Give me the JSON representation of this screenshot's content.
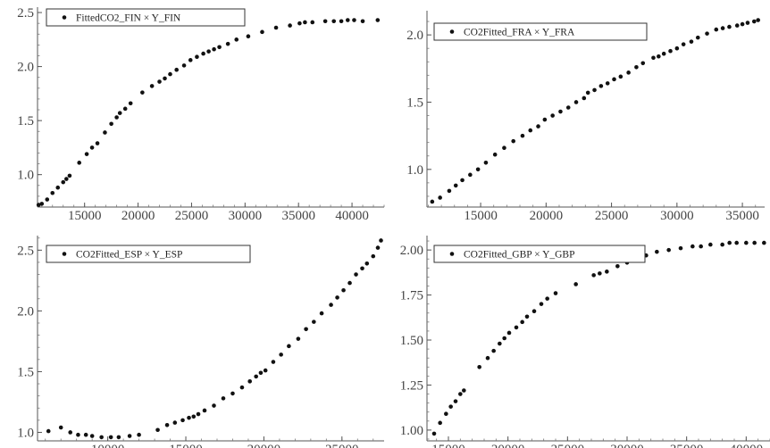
{
  "chart_data": [
    {
      "type": "scatter",
      "legend_label": "FittedCO2_FIN × Y_FIN",
      "legend_position": "top-left",
      "xlim": [
        10600,
        43000
      ],
      "ylim": [
        0.7,
        2.55
      ],
      "x_ticks": [
        15000,
        20000,
        25000,
        30000,
        35000,
        40000
      ],
      "x_tick_labels": [
        "15000",
        "20000",
        "25000",
        "30000",
        "35000",
        "40000"
      ],
      "y_ticks": [
        1.0,
        1.5,
        2.0,
        2.5
      ],
      "y_tick_labels": [
        "1.0",
        "1.5",
        "2.0",
        "2.5"
      ],
      "points": [
        [
          10700,
          0.72
        ],
        [
          11000,
          0.73
        ],
        [
          11500,
          0.77
        ],
        [
          12000,
          0.83
        ],
        [
          12500,
          0.88
        ],
        [
          13000,
          0.93
        ],
        [
          13300,
          0.96
        ],
        [
          13600,
          0.99
        ],
        [
          14500,
          1.11
        ],
        [
          15200,
          1.19
        ],
        [
          15700,
          1.25
        ],
        [
          16200,
          1.29
        ],
        [
          16900,
          1.39
        ],
        [
          17500,
          1.47
        ],
        [
          18000,
          1.53
        ],
        [
          18300,
          1.57
        ],
        [
          18800,
          1.61
        ],
        [
          19300,
          1.66
        ],
        [
          20400,
          1.76
        ],
        [
          21300,
          1.82
        ],
        [
          22000,
          1.86
        ],
        [
          22500,
          1.89
        ],
        [
          23000,
          1.93
        ],
        [
          23600,
          1.97
        ],
        [
          24300,
          2.01
        ],
        [
          24900,
          2.06
        ],
        [
          25500,
          2.09
        ],
        [
          26100,
          2.12
        ],
        [
          26600,
          2.14
        ],
        [
          27100,
          2.16
        ],
        [
          27600,
          2.18
        ],
        [
          28400,
          2.21
        ],
        [
          29200,
          2.25
        ],
        [
          30300,
          2.28
        ],
        [
          31600,
          2.32
        ],
        [
          32900,
          2.36
        ],
        [
          34200,
          2.38
        ],
        [
          35100,
          2.4
        ],
        [
          35600,
          2.41
        ],
        [
          36300,
          2.41
        ],
        [
          37500,
          2.42
        ],
        [
          38300,
          2.42
        ],
        [
          39000,
          2.42
        ],
        [
          39600,
          2.43
        ],
        [
          40200,
          2.43
        ],
        [
          41000,
          2.42
        ],
        [
          42400,
          2.43
        ]
      ]
    },
    {
      "type": "scatter",
      "legend_label": "CO2Fitted_FRA × Y_FRA",
      "legend_position": "top-left",
      "xlim": [
        10900,
        36700
      ],
      "ylim": [
        0.72,
        2.18
      ],
      "x_ticks": [
        15000,
        20000,
        25000,
        30000,
        35000
      ],
      "x_tick_labels": [
        "15000",
        "20000",
        "25000",
        "30000",
        "35000"
      ],
      "y_ticks": [
        1.0,
        1.5,
        2.0
      ],
      "y_tick_labels": [
        "1.0",
        "1.5",
        "2.0"
      ],
      "points": [
        [
          11300,
          0.76
        ],
        [
          11900,
          0.79
        ],
        [
          12600,
          0.84
        ],
        [
          13100,
          0.88
        ],
        [
          13600,
          0.92
        ],
        [
          14200,
          0.96
        ],
        [
          14800,
          1.0
        ],
        [
          15400,
          1.05
        ],
        [
          16100,
          1.11
        ],
        [
          16800,
          1.16
        ],
        [
          17500,
          1.21
        ],
        [
          18200,
          1.25
        ],
        [
          18800,
          1.29
        ],
        [
          19400,
          1.32
        ],
        [
          19900,
          1.37
        ],
        [
          20500,
          1.4
        ],
        [
          21100,
          1.43
        ],
        [
          21700,
          1.46
        ],
        [
          22300,
          1.5
        ],
        [
          22900,
          1.53
        ],
        [
          23200,
          1.57
        ],
        [
          23700,
          1.59
        ],
        [
          24200,
          1.62
        ],
        [
          24700,
          1.64
        ],
        [
          25200,
          1.67
        ],
        [
          25700,
          1.69
        ],
        [
          26300,
          1.72
        ],
        [
          26900,
          1.76
        ],
        [
          27400,
          1.79
        ],
        [
          28200,
          1.83
        ],
        [
          28600,
          1.84
        ],
        [
          29000,
          1.86
        ],
        [
          29500,
          1.88
        ],
        [
          30000,
          1.9
        ],
        [
          30500,
          1.93
        ],
        [
          31100,
          1.95
        ],
        [
          31600,
          1.98
        ],
        [
          32300,
          2.01
        ],
        [
          33000,
          2.04
        ],
        [
          33500,
          2.05
        ],
        [
          34000,
          2.06
        ],
        [
          34600,
          2.07
        ],
        [
          35000,
          2.08
        ],
        [
          35400,
          2.09
        ],
        [
          35900,
          2.1
        ],
        [
          36200,
          2.11
        ]
      ]
    },
    {
      "type": "scatter",
      "legend_label": "CO2Fitted_ESP × Y_ESP",
      "legend_position": "top-left",
      "xlim": [
        5500,
        27700
      ],
      "ylim": [
        0.93,
        2.62
      ],
      "x_ticks": [
        10000,
        15000,
        20000,
        25000
      ],
      "x_tick_labels": [
        "10000",
        "15000",
        "20000",
        "25000"
      ],
      "y_ticks": [
        1.0,
        1.5,
        2.0,
        2.5
      ],
      "y_tick_labels": [
        "1.0",
        "1.5",
        "2.0",
        "2.5"
      ],
      "points": [
        [
          6200,
          1.01
        ],
        [
          7000,
          1.04
        ],
        [
          7600,
          1.0
        ],
        [
          8100,
          0.98
        ],
        [
          8600,
          0.98
        ],
        [
          9000,
          0.97
        ],
        [
          9600,
          0.96
        ],
        [
          10200,
          0.96
        ],
        [
          10700,
          0.96
        ],
        [
          11400,
          0.97
        ],
        [
          12000,
          0.98
        ],
        [
          13200,
          1.02
        ],
        [
          13800,
          1.06
        ],
        [
          14300,
          1.08
        ],
        [
          14800,
          1.1
        ],
        [
          15200,
          1.12
        ],
        [
          15500,
          1.13
        ],
        [
          15800,
          1.15
        ],
        [
          16200,
          1.18
        ],
        [
          16800,
          1.22
        ],
        [
          17400,
          1.28
        ],
        [
          18000,
          1.32
        ],
        [
          18600,
          1.37
        ],
        [
          19100,
          1.42
        ],
        [
          19500,
          1.46
        ],
        [
          19800,
          1.49
        ],
        [
          20100,
          1.51
        ],
        [
          20600,
          1.58
        ],
        [
          21100,
          1.64
        ],
        [
          21600,
          1.71
        ],
        [
          22200,
          1.77
        ],
        [
          22700,
          1.85
        ],
        [
          23200,
          1.91
        ],
        [
          23700,
          1.98
        ],
        [
          24300,
          2.05
        ],
        [
          24700,
          2.11
        ],
        [
          25100,
          2.17
        ],
        [
          25500,
          2.23
        ],
        [
          25900,
          2.3
        ],
        [
          26300,
          2.35
        ],
        [
          26600,
          2.39
        ],
        [
          27000,
          2.45
        ],
        [
          27300,
          2.52
        ],
        [
          27500,
          2.58
        ]
      ]
    },
    {
      "type": "scatter",
      "legend_label": "CO2Fitted_GBP × Y_GBP",
      "legend_position": "top-left",
      "xlim": [
        13200,
        42000
      ],
      "ylim": [
        0.94,
        2.08
      ],
      "x_ticks": [
        15000,
        20000,
        25000,
        30000,
        35000,
        40000
      ],
      "x_tick_labels": [
        "15000",
        "20000",
        "25000",
        "30000",
        "35000",
        "40000"
      ],
      "y_ticks": [
        1.0,
        1.25,
        1.5,
        1.75,
        2.0
      ],
      "y_tick_labels": [
        "1.00",
        "1.25",
        "1.50",
        "1.75",
        "2.00"
      ],
      "points": [
        [
          13800,
          0.98
        ],
        [
          14300,
          1.04
        ],
        [
          14800,
          1.09
        ],
        [
          15200,
          1.13
        ],
        [
          15600,
          1.16
        ],
        [
          16000,
          1.2
        ],
        [
          16300,
          1.22
        ],
        [
          17600,
          1.35
        ],
        [
          18300,
          1.4
        ],
        [
          18800,
          1.44
        ],
        [
          19300,
          1.48
        ],
        [
          19700,
          1.51
        ],
        [
          20100,
          1.54
        ],
        [
          20700,
          1.57
        ],
        [
          21200,
          1.6
        ],
        [
          21600,
          1.63
        ],
        [
          22200,
          1.66
        ],
        [
          22800,
          1.7
        ],
        [
          23300,
          1.73
        ],
        [
          24000,
          1.76
        ],
        [
          25700,
          1.81
        ],
        [
          27200,
          1.86
        ],
        [
          27700,
          1.87
        ],
        [
          28300,
          1.88
        ],
        [
          29200,
          1.91
        ],
        [
          30000,
          1.93
        ],
        [
          30800,
          1.95
        ],
        [
          31600,
          1.97
        ],
        [
          32500,
          1.99
        ],
        [
          33500,
          2.0
        ],
        [
          34500,
          2.01
        ],
        [
          35500,
          2.02
        ],
        [
          36200,
          2.02
        ],
        [
          37000,
          2.03
        ],
        [
          38000,
          2.03
        ],
        [
          38600,
          2.04
        ],
        [
          39200,
          2.04
        ],
        [
          40000,
          2.04
        ],
        [
          40700,
          2.04
        ],
        [
          41500,
          2.04
        ]
      ]
    }
  ]
}
